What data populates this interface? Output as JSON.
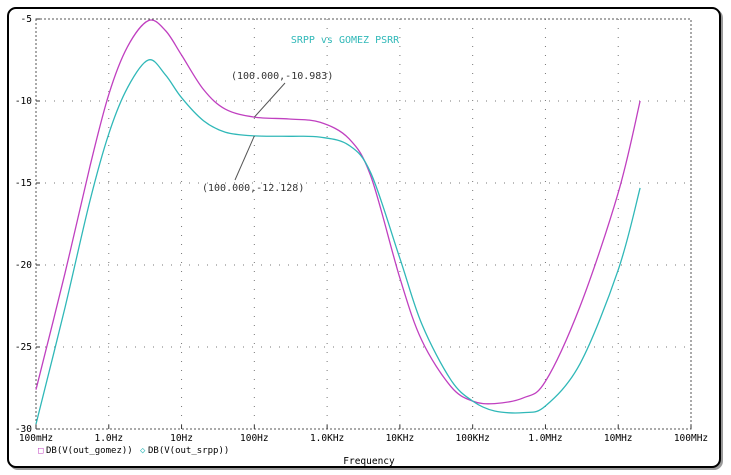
{
  "chart_data": {
    "type": "line",
    "title": "SRPP vs GOMEZ  PSRR",
    "xlabel": "Frequency",
    "ylabel": "",
    "xscale": "log",
    "xlim": [
      0.1,
      100000000
    ],
    "ylim": [
      -30,
      -5
    ],
    "grid": true,
    "legend": "bottom-left",
    "x_ticks": [
      {
        "value": 0.1,
        "label": "100mHz"
      },
      {
        "value": 1,
        "label": "1.0Hz"
      },
      {
        "value": 10,
        "label": "10Hz"
      },
      {
        "value": 100,
        "label": "100Hz"
      },
      {
        "value": 1000,
        "label": "1.0KHz"
      },
      {
        "value": 10000,
        "label": "10KHz"
      },
      {
        "value": 100000,
        "label": "100KHz"
      },
      {
        "value": 1000000,
        "label": "1.0MHz"
      },
      {
        "value": 10000000,
        "label": "10MHz"
      },
      {
        "value": 100000000,
        "label": "100MHz"
      }
    ],
    "y_ticks": [
      {
        "value": -5,
        "label": "-5"
      },
      {
        "value": -10,
        "label": "-10"
      },
      {
        "value": -15,
        "label": "-15"
      },
      {
        "value": -20,
        "label": "-20"
      },
      {
        "value": -25,
        "label": "-25"
      },
      {
        "value": -30,
        "label": "-30"
      }
    ],
    "series": [
      {
        "name": "DB(V(out_gomez))",
        "marker": "□",
        "color": "#c040c0",
        "points": [
          [
            0.1,
            -27.6
          ],
          [
            0.25,
            -20.5
          ],
          [
            0.55,
            -14.0
          ],
          [
            1,
            -9.6
          ],
          [
            1.8,
            -6.7
          ],
          [
            3.5,
            -5.1
          ],
          [
            6,
            -5.7
          ],
          [
            10,
            -7.2
          ],
          [
            20,
            -9.3
          ],
          [
            40,
            -10.5
          ],
          [
            100,
            -10.98
          ],
          [
            300,
            -11.1
          ],
          [
            800,
            -11.3
          ],
          [
            2000,
            -12.3
          ],
          [
            4000,
            -14.6
          ],
          [
            10000,
            -20.8
          ],
          [
            20000,
            -24.6
          ],
          [
            50000,
            -27.4
          ],
          [
            100000,
            -28.3
          ],
          [
            200000,
            -28.45
          ],
          [
            500000,
            -28.1
          ],
          [
            1000000,
            -27.1
          ],
          [
            3000000,
            -22.5
          ],
          [
            10000000,
            -15.6
          ],
          [
            20000000,
            -10.0
          ]
        ]
      },
      {
        "name": "DB(V(out_srpp))",
        "marker": "◇",
        "color": "#30b8b8",
        "points": [
          [
            0.1,
            -29.7
          ],
          [
            0.25,
            -22.6
          ],
          [
            0.55,
            -16.1
          ],
          [
            1,
            -12.0
          ],
          [
            1.8,
            -9.2
          ],
          [
            3.5,
            -7.5
          ],
          [
            6,
            -8.4
          ],
          [
            10,
            -9.8
          ],
          [
            20,
            -11.2
          ],
          [
            40,
            -11.9
          ],
          [
            100,
            -12.13
          ],
          [
            300,
            -12.15
          ],
          [
            800,
            -12.2
          ],
          [
            2000,
            -12.7
          ],
          [
            4000,
            -14.4
          ],
          [
            10000,
            -19.6
          ],
          [
            20000,
            -23.6
          ],
          [
            50000,
            -27.0
          ],
          [
            100000,
            -28.3
          ],
          [
            200000,
            -28.9
          ],
          [
            500000,
            -29.0
          ],
          [
            1000000,
            -28.6
          ],
          [
            3000000,
            -26.0
          ],
          [
            10000000,
            -20.3
          ],
          [
            20000000,
            -15.3
          ]
        ]
      }
    ],
    "annotations": [
      {
        "text": "(100.000,-10.983)",
        "x": 100,
        "y": -10.983,
        "series": 0
      },
      {
        "text": "(100.000,-12.128)",
        "x": 100,
        "y": -12.128,
        "series": 1
      }
    ]
  }
}
